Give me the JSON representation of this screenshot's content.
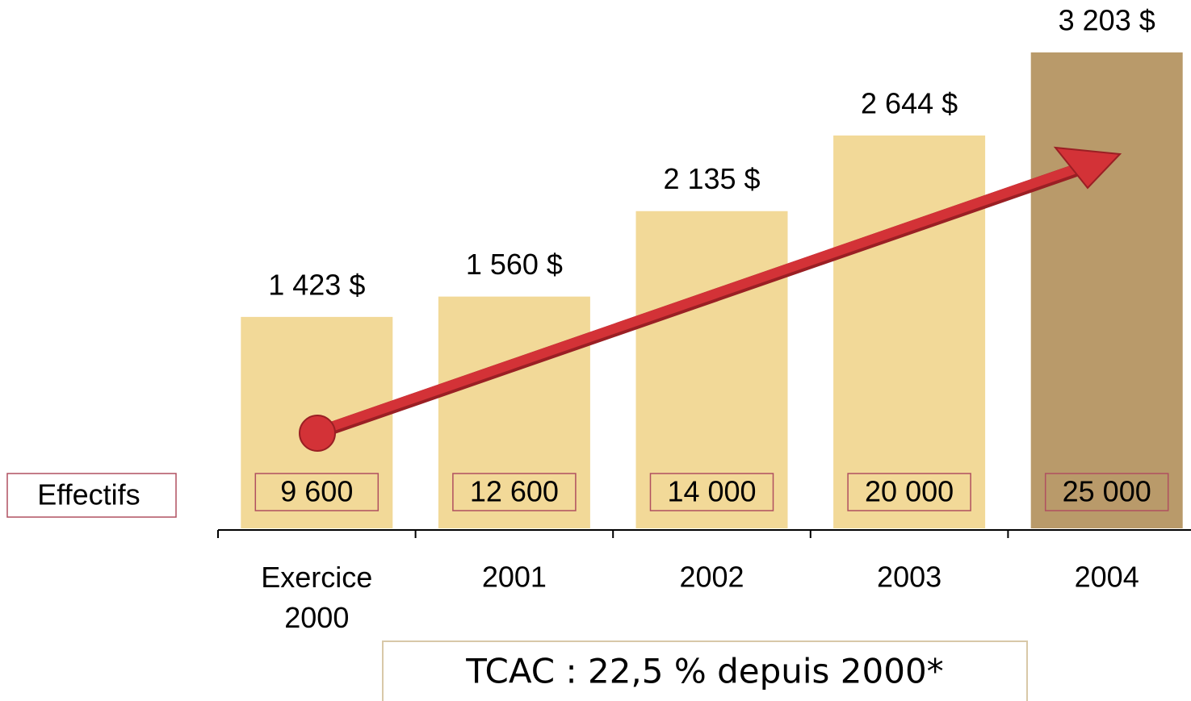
{
  "chart_data": {
    "type": "bar",
    "categories": [
      "Exercice 2000",
      "2001",
      "2002",
      "2003",
      "2004"
    ],
    "values": [
      1423,
      1560,
      2135,
      2644,
      3203
    ],
    "value_labels": [
      "1 423 $",
      "1 560 $",
      "2 135 $",
      "2 644 $",
      "3 203 $"
    ],
    "colors": [
      "#f2d998",
      "#f2d998",
      "#f2d998",
      "#f2d998",
      "#b99a6a"
    ],
    "headcount": {
      "label": "Effectifs",
      "values": [
        9600,
        12600,
        14000,
        20000,
        25000
      ],
      "value_labels": [
        "9 600",
        "12 600",
        "14 000",
        "20 000",
        "25 000"
      ]
    },
    "annotation": "TCAC : 22,5 % depuis 2000*"
  }
}
